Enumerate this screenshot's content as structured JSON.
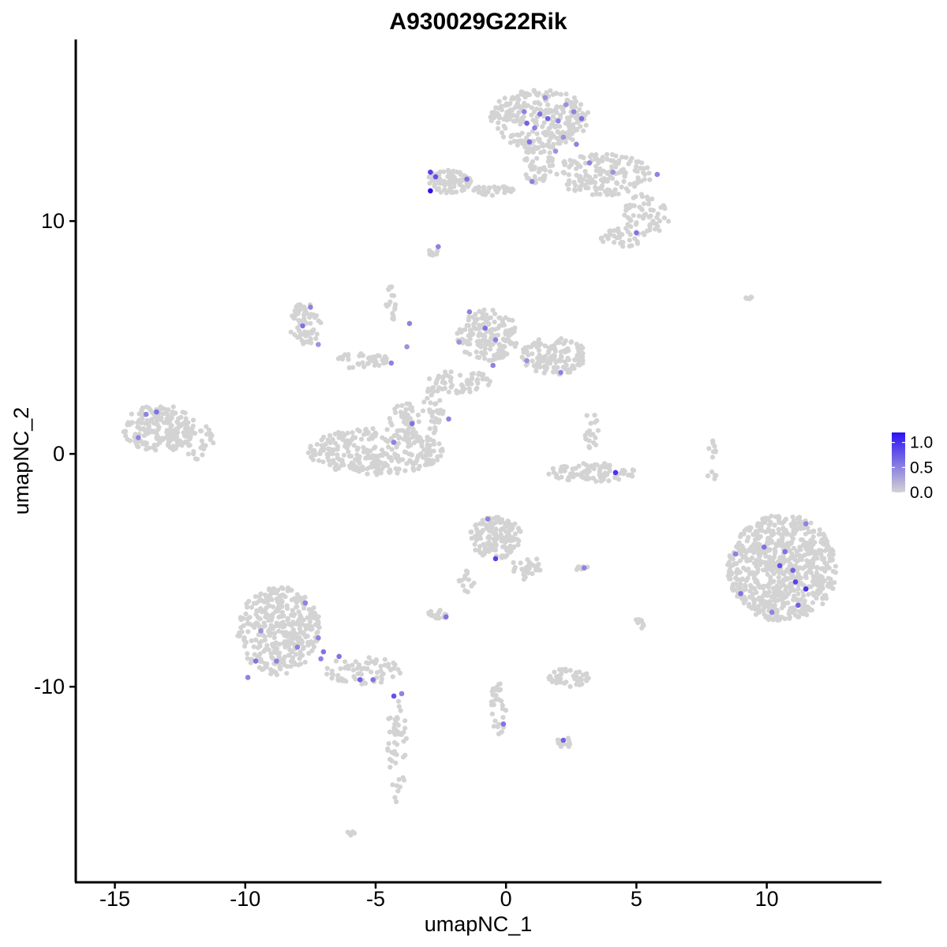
{
  "chart_data": {
    "type": "scatter",
    "title": "A930029G22Rik",
    "xlabel": "umapNC_1",
    "ylabel": "umapNC_2",
    "xlim": [
      -16.5,
      14.4
    ],
    "ylim": [
      -18.4,
      17.8
    ],
    "xticks": [
      -15,
      -10,
      -5,
      0,
      5,
      10
    ],
    "xtick_labels": [
      "-15",
      "-10",
      "-5",
      "0",
      "5",
      "10"
    ],
    "yticks": [
      -10,
      0,
      10
    ],
    "ytick_labels": [
      "-10",
      "0",
      "10"
    ],
    "grid": false,
    "legend": {
      "type": "colorbar",
      "placement": "right",
      "ticks": [
        1.0,
        0.5,
        0.0
      ],
      "tick_labels": [
        "1.0",
        "0.5",
        "0.0"
      ],
      "min": 0.0,
      "max": 1.2,
      "low_color": "#d3d3d3",
      "high_color": "#2b12f2"
    },
    "background_color": "#d3d3d3",
    "clusters": [
      {
        "name": "top-cluster-blob",
        "cx": 1.3,
        "cy": 14.4,
        "rx": 1.9,
        "ry": 1.3,
        "n": 260
      },
      {
        "name": "top-cluster-stem",
        "cx": 1.2,
        "cy": 12.6,
        "rx": 0.6,
        "ry": 1.0,
        "n": 60
      },
      {
        "name": "top-cluster-wing",
        "cx": 3.7,
        "cy": 12.0,
        "rx": 1.9,
        "ry": 0.9,
        "n": 160
      },
      {
        "name": "top-cluster-tail",
        "cx": 5.4,
        "cy": 10.3,
        "rx": 0.9,
        "ry": 0.9,
        "n": 60
      },
      {
        "name": "top-cluster-bottom",
        "cx": 4.5,
        "cy": 9.3,
        "rx": 0.9,
        "ry": 0.4,
        "n": 35
      },
      {
        "name": "top-left-cluster",
        "cx": -2.2,
        "cy": 11.7,
        "rx": 0.9,
        "ry": 0.5,
        "n": 80
      },
      {
        "name": "top-bridge",
        "cx": -0.5,
        "cy": 11.3,
        "rx": 0.9,
        "ry": 0.2,
        "n": 35
      },
      {
        "name": "small-top-speck",
        "cx": -2.8,
        "cy": 8.7,
        "rx": 0.2,
        "ry": 0.2,
        "n": 8
      },
      {
        "name": "left-mid-cluster",
        "cx": -7.7,
        "cy": 5.6,
        "rx": 0.6,
        "ry": 0.9,
        "n": 70
      },
      {
        "name": "left-mid-arm",
        "cx": -5.5,
        "cy": 4.0,
        "rx": 1.0,
        "ry": 0.4,
        "n": 40
      },
      {
        "name": "center-cluster-a",
        "cx": -0.7,
        "cy": 5.1,
        "rx": 1.2,
        "ry": 1.1,
        "n": 160
      },
      {
        "name": "center-cluster-b",
        "cx": 1.8,
        "cy": 4.2,
        "rx": 1.3,
        "ry": 0.8,
        "n": 140
      },
      {
        "name": "center-cluster-c",
        "cx": -1.8,
        "cy": 3.1,
        "rx": 1.2,
        "ry": 0.5,
        "n": 60
      },
      {
        "name": "center-stem",
        "cx": -2.8,
        "cy": 1.9,
        "rx": 0.4,
        "ry": 1.1,
        "n": 35
      },
      {
        "name": "upper-mid-strand",
        "cx": -4.4,
        "cy": 6.4,
        "rx": 0.2,
        "ry": 0.8,
        "n": 18
      },
      {
        "name": "mid-u-cluster",
        "cx": -5.0,
        "cy": 0.1,
        "rx": 2.6,
        "ry": 1.0,
        "n": 300
      },
      {
        "name": "mid-u-right-arm",
        "cx": -3.9,
        "cy": 1.4,
        "rx": 0.6,
        "ry": 0.8,
        "n": 40
      },
      {
        "name": "far-left-cluster",
        "cx": -13.3,
        "cy": 1.1,
        "rx": 1.4,
        "ry": 1.0,
        "n": 200
      },
      {
        "name": "far-left-tail",
        "cx": -11.8,
        "cy": 0.5,
        "rx": 0.6,
        "ry": 0.8,
        "n": 30
      },
      {
        "name": "mid-right-arc",
        "cx": 3.3,
        "cy": -0.8,
        "rx": 1.7,
        "ry": 0.4,
        "n": 90
      },
      {
        "name": "mid-right-strand",
        "cx": 3.3,
        "cy": 1.0,
        "rx": 0.3,
        "ry": 0.9,
        "n": 20
      },
      {
        "name": "right-big-cluster",
        "cx": 10.6,
        "cy": -4.9,
        "rx": 2.1,
        "ry": 2.3,
        "n": 700
      },
      {
        "name": "right-small-strand",
        "cx": 7.9,
        "cy": -0.3,
        "rx": 0.2,
        "ry": 1.1,
        "n": 14
      },
      {
        "name": "center-low-cluster",
        "cx": -0.4,
        "cy": -3.6,
        "rx": 1.0,
        "ry": 0.9,
        "n": 150
      },
      {
        "name": "center-low-tail",
        "cx": 0.8,
        "cy": -4.9,
        "rx": 0.6,
        "ry": 0.5,
        "n": 30
      },
      {
        "name": "center-low-strand",
        "cx": -1.5,
        "cy": -5.5,
        "rx": 0.3,
        "ry": 0.5,
        "n": 15
      },
      {
        "name": "small-cluster-a",
        "cx": -2.6,
        "cy": -6.9,
        "rx": 0.4,
        "ry": 0.2,
        "n": 22
      },
      {
        "name": "small-cluster-b",
        "cx": 2.9,
        "cy": -4.9,
        "rx": 0.3,
        "ry": 0.1,
        "n": 10
      },
      {
        "name": "small-cluster-c",
        "cx": 2.4,
        "cy": -9.6,
        "rx": 0.8,
        "ry": 0.4,
        "n": 50
      },
      {
        "name": "small-cluster-d",
        "cx": 2.3,
        "cy": -12.4,
        "rx": 0.4,
        "ry": 0.2,
        "n": 14
      },
      {
        "name": "lower-center-strand",
        "cx": -0.3,
        "cy": -10.9,
        "rx": 0.3,
        "ry": 1.2,
        "n": 30
      },
      {
        "name": "lower-left-cluster",
        "cx": -8.7,
        "cy": -7.6,
        "rx": 1.6,
        "ry": 1.9,
        "n": 360
      },
      {
        "name": "lower-left-arm",
        "cx": -5.5,
        "cy": -9.3,
        "rx": 1.5,
        "ry": 0.6,
        "n": 70
      },
      {
        "name": "lower-left-tail",
        "cx": -4.2,
        "cy": -12.8,
        "rx": 0.4,
        "ry": 2.4,
        "n": 50
      },
      {
        "name": "lower-speck",
        "cx": -6.0,
        "cy": -16.3,
        "rx": 0.2,
        "ry": 0.1,
        "n": 5
      },
      {
        "name": "right-speck",
        "cx": 9.4,
        "cy": 6.7,
        "rx": 0.2,
        "ry": 0.1,
        "n": 5
      },
      {
        "name": "right-mid-speck",
        "cx": 5.1,
        "cy": -7.3,
        "rx": 0.2,
        "ry": 0.3,
        "n": 7
      }
    ],
    "expressing_points": [
      {
        "x": 0.7,
        "y": 14.7,
        "v": 0.5
      },
      {
        "x": 1.3,
        "y": 14.6,
        "v": 0.6
      },
      {
        "x": 1.6,
        "y": 14.4,
        "v": 0.7
      },
      {
        "x": 2.0,
        "y": 14.3,
        "v": 0.5
      },
      {
        "x": 2.3,
        "y": 15.0,
        "v": 0.4
      },
      {
        "x": 2.6,
        "y": 14.7,
        "v": 0.5
      },
      {
        "x": 2.9,
        "y": 14.4,
        "v": 0.6
      },
      {
        "x": 0.8,
        "y": 14.2,
        "v": 0.7
      },
      {
        "x": 1.1,
        "y": 14.0,
        "v": 0.5
      },
      {
        "x": 2.2,
        "y": 13.6,
        "v": 0.4
      },
      {
        "x": 2.7,
        "y": 13.3,
        "v": 0.5
      },
      {
        "x": 1.9,
        "y": 13.0,
        "v": 0.4
      },
      {
        "x": 3.2,
        "y": 12.5,
        "v": 0.5
      },
      {
        "x": 4.1,
        "y": 12.1,
        "v": 0.4
      },
      {
        "x": 5.8,
        "y": 12.0,
        "v": 0.5
      },
      {
        "x": 0.9,
        "y": 13.4,
        "v": 0.6
      },
      {
        "x": 1.5,
        "y": 15.3,
        "v": 0.4
      },
      {
        "x": -2.9,
        "y": 12.1,
        "v": 0.9
      },
      {
        "x": -2.7,
        "y": 11.9,
        "v": 0.8
      },
      {
        "x": -2.9,
        "y": 11.3,
        "v": 1.2
      },
      {
        "x": -1.5,
        "y": 11.8,
        "v": 0.6
      },
      {
        "x": 1.0,
        "y": 11.7,
        "v": 0.5
      },
      {
        "x": 5.0,
        "y": 9.5,
        "v": 0.6
      },
      {
        "x": -2.6,
        "y": 8.9,
        "v": 0.5
      },
      {
        "x": -7.5,
        "y": 6.3,
        "v": 0.5
      },
      {
        "x": -7.8,
        "y": 5.5,
        "v": 0.6
      },
      {
        "x": -7.2,
        "y": 4.7,
        "v": 0.4
      },
      {
        "x": -1.4,
        "y": 6.1,
        "v": 0.5
      },
      {
        "x": -0.8,
        "y": 5.4,
        "v": 0.6
      },
      {
        "x": -0.4,
        "y": 4.9,
        "v": 0.5
      },
      {
        "x": -1.8,
        "y": 4.8,
        "v": 0.4
      },
      {
        "x": -0.5,
        "y": 3.8,
        "v": 0.5
      },
      {
        "x": 0.8,
        "y": 4.0,
        "v": 0.4
      },
      {
        "x": 2.1,
        "y": 3.5,
        "v": 0.5
      },
      {
        "x": -3.7,
        "y": 5.6,
        "v": 0.5
      },
      {
        "x": -3.8,
        "y": 4.6,
        "v": 0.4
      },
      {
        "x": -4.4,
        "y": 3.9,
        "v": 0.5
      },
      {
        "x": -3.6,
        "y": 1.3,
        "v": 0.6
      },
      {
        "x": -2.2,
        "y": 1.5,
        "v": 0.5
      },
      {
        "x": -4.3,
        "y": 0.5,
        "v": 0.5
      },
      {
        "x": -13.8,
        "y": 1.7,
        "v": 0.5
      },
      {
        "x": -13.4,
        "y": 1.8,
        "v": 0.6
      },
      {
        "x": -14.1,
        "y": 0.7,
        "v": 0.5
      },
      {
        "x": 4.2,
        "y": -0.8,
        "v": 1.0
      },
      {
        "x": 11.5,
        "y": -3.0,
        "v": 0.5
      },
      {
        "x": 9.9,
        "y": -4.0,
        "v": 0.6
      },
      {
        "x": 10.7,
        "y": -4.2,
        "v": 0.6
      },
      {
        "x": 10.5,
        "y": -4.8,
        "v": 0.8
      },
      {
        "x": 11.0,
        "y": -5.0,
        "v": 0.7
      },
      {
        "x": 11.1,
        "y": -5.5,
        "v": 0.9
      },
      {
        "x": 11.5,
        "y": -5.8,
        "v": 1.0
      },
      {
        "x": 9.0,
        "y": -6.0,
        "v": 0.6
      },
      {
        "x": 11.2,
        "y": -6.5,
        "v": 0.7
      },
      {
        "x": 10.2,
        "y": -6.8,
        "v": 0.5
      },
      {
        "x": 8.8,
        "y": -4.3,
        "v": 0.5
      },
      {
        "x": -0.7,
        "y": -2.8,
        "v": 0.5
      },
      {
        "x": -0.4,
        "y": -4.5,
        "v": 0.9
      },
      {
        "x": 3.0,
        "y": -4.9,
        "v": 0.5
      },
      {
        "x": -2.3,
        "y": -7.0,
        "v": 0.6
      },
      {
        "x": -7.7,
        "y": -6.4,
        "v": 0.5
      },
      {
        "x": -7.2,
        "y": -7.9,
        "v": 0.5
      },
      {
        "x": -8.0,
        "y": -8.3,
        "v": 0.5
      },
      {
        "x": -7.0,
        "y": -8.5,
        "v": 0.6
      },
      {
        "x": -7.1,
        "y": -8.8,
        "v": 0.5
      },
      {
        "x": -6.4,
        "y": -8.7,
        "v": 0.6
      },
      {
        "x": -8.8,
        "y": -8.9,
        "v": 0.5
      },
      {
        "x": -9.6,
        "y": -8.9,
        "v": 0.6
      },
      {
        "x": -9.9,
        "y": -9.6,
        "v": 0.5
      },
      {
        "x": -9.4,
        "y": -7.6,
        "v": 0.4
      },
      {
        "x": -5.6,
        "y": -9.7,
        "v": 0.7
      },
      {
        "x": -5.1,
        "y": -9.7,
        "v": 0.6
      },
      {
        "x": -4.3,
        "y": -10.4,
        "v": 0.8
      },
      {
        "x": -4.0,
        "y": -10.3,
        "v": 0.5
      },
      {
        "x": -0.1,
        "y": -11.6,
        "v": 0.6
      },
      {
        "x": 2.2,
        "y": -12.3,
        "v": 0.7
      }
    ]
  }
}
